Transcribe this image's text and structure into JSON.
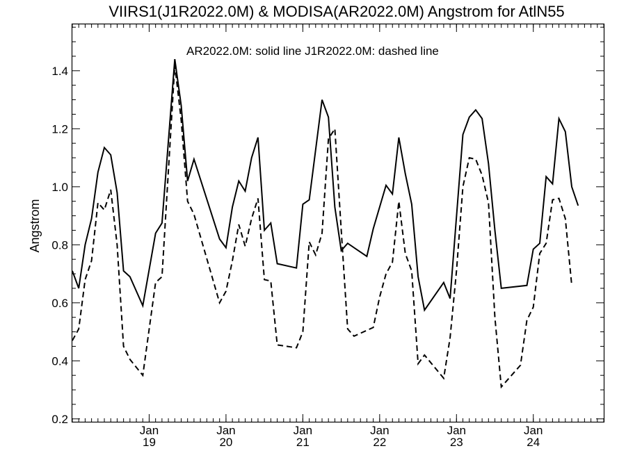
{
  "chart_data": {
    "type": "line",
    "title": "VIIRS1(J1R2022.0M) & MODISA(AR2022.0M)  Angstrom for AtlN55",
    "annotation": "AR2022.0M: solid line   J1R2022.0M: dashed line",
    "ylabel": "Angstrom",
    "xlabel": "",
    "ylim": [
      0.19,
      1.56
    ],
    "xlim": [
      "2018-01-01",
      "2024-12-01"
    ],
    "y_ticks": [
      "0.2",
      "0.4",
      "0.6",
      "0.8",
      "1.0",
      "1.2",
      "1.4"
    ],
    "x_ticks": [
      {
        "month": "Jan",
        "year": "19",
        "date": "2019-01-01"
      },
      {
        "month": "Jan",
        "year": "20",
        "date": "2020-01-01"
      },
      {
        "month": "Jan",
        "year": "21",
        "date": "2021-01-01"
      },
      {
        "month": "Jan",
        "year": "22",
        "date": "2022-01-01"
      },
      {
        "month": "Jan",
        "year": "23",
        "date": "2023-01-01"
      },
      {
        "month": "Jan",
        "year": "24",
        "date": "2024-01-01"
      }
    ],
    "series": [
      {
        "name": "AR2022.0M",
        "style": "solid",
        "color": "#000000",
        "points": [
          [
            "2018-01-01",
            0.71
          ],
          [
            "2018-02-01",
            0.65
          ],
          [
            "2018-03-01",
            0.8
          ],
          [
            "2018-04-01",
            0.89
          ],
          [
            "2018-05-01",
            1.05
          ],
          [
            "2018-06-01",
            1.135
          ],
          [
            "2018-07-01",
            1.11
          ],
          [
            "2018-08-01",
            0.98
          ],
          [
            "2018-09-01",
            0.71
          ],
          [
            "2018-10-01",
            0.69
          ],
          [
            "2018-12-01",
            0.59
          ],
          [
            "2019-02-01",
            0.84
          ],
          [
            "2019-03-01",
            0.875
          ],
          [
            "2019-05-01",
            1.44
          ],
          [
            "2019-06-01",
            1.28
          ],
          [
            "2019-07-01",
            1.02
          ],
          [
            "2019-08-01",
            1.095
          ],
          [
            "2019-12-01",
            0.82
          ],
          [
            "2020-01-01",
            0.79
          ],
          [
            "2020-02-01",
            0.93
          ],
          [
            "2020-03-01",
            1.02
          ],
          [
            "2020-04-01",
            0.985
          ],
          [
            "2020-05-01",
            1.1
          ],
          [
            "2020-06-01",
            1.17
          ],
          [
            "2020-07-01",
            0.85
          ],
          [
            "2020-08-01",
            0.875
          ],
          [
            "2020-09-01",
            0.735
          ],
          [
            "2020-12-01",
            0.72
          ],
          [
            "2021-01-01",
            0.94
          ],
          [
            "2021-02-01",
            0.955
          ],
          [
            "2021-04-01",
            1.3
          ],
          [
            "2021-05-01",
            1.24
          ],
          [
            "2021-06-01",
            0.93
          ],
          [
            "2021-07-01",
            0.78
          ],
          [
            "2021-08-01",
            0.805
          ],
          [
            "2021-11-01",
            0.76
          ],
          [
            "2021-12-01",
            0.855
          ],
          [
            "2022-02-01",
            1.005
          ],
          [
            "2022-03-01",
            0.975
          ],
          [
            "2022-04-01",
            1.17
          ],
          [
            "2022-05-01",
            1.045
          ],
          [
            "2022-06-01",
            0.94
          ],
          [
            "2022-07-01",
            0.69
          ],
          [
            "2022-08-01",
            0.575
          ],
          [
            "2022-11-01",
            0.67
          ],
          [
            "2022-12-01",
            0.615
          ],
          [
            "2023-02-01",
            1.18
          ],
          [
            "2023-03-01",
            1.24
          ],
          [
            "2023-04-01",
            1.265
          ],
          [
            "2023-05-01",
            1.235
          ],
          [
            "2023-06-01",
            1.08
          ],
          [
            "2023-07-01",
            0.85
          ],
          [
            "2023-08-01",
            0.65
          ],
          [
            "2023-12-01",
            0.66
          ],
          [
            "2024-01-01",
            0.785
          ],
          [
            "2024-02-01",
            0.805
          ],
          [
            "2024-03-01",
            1.035
          ],
          [
            "2024-04-01",
            1.01
          ],
          [
            "2024-05-01",
            1.235
          ],
          [
            "2024-06-01",
            1.19
          ],
          [
            "2024-07-01",
            1.0
          ],
          [
            "2024-08-01",
            0.935
          ]
        ]
      },
      {
        "name": "J1R2022.0M",
        "style": "dashed",
        "color": "#000000",
        "points": [
          [
            "2018-01-01",
            0.47
          ],
          [
            "2018-02-01",
            0.51
          ],
          [
            "2018-03-01",
            0.68
          ],
          [
            "2018-04-01",
            0.745
          ],
          [
            "2018-05-01",
            0.945
          ],
          [
            "2018-06-01",
            0.92
          ],
          [
            "2018-07-01",
            0.99
          ],
          [
            "2018-08-01",
            0.8
          ],
          [
            "2018-09-01",
            0.45
          ],
          [
            "2018-10-01",
            0.405
          ],
          [
            "2018-12-01",
            0.35
          ],
          [
            "2019-02-01",
            0.67
          ],
          [
            "2019-03-01",
            0.69
          ],
          [
            "2019-05-01",
            1.42
          ],
          [
            "2019-06-01",
            1.23
          ],
          [
            "2019-07-01",
            0.95
          ],
          [
            "2019-08-01",
            0.905
          ],
          [
            "2019-12-01",
            0.6
          ],
          [
            "2020-01-01",
            0.64
          ],
          [
            "2020-02-01",
            0.745
          ],
          [
            "2020-03-01",
            0.87
          ],
          [
            "2020-04-01",
            0.795
          ],
          [
            "2020-05-01",
            0.89
          ],
          [
            "2020-06-01",
            0.96
          ],
          [
            "2020-07-01",
            0.68
          ],
          [
            "2020-08-01",
            0.675
          ],
          [
            "2020-09-01",
            0.455
          ],
          [
            "2020-12-01",
            0.445
          ],
          [
            "2021-01-01",
            0.5
          ],
          [
            "2021-02-01",
            0.81
          ],
          [
            "2021-03-01",
            0.765
          ],
          [
            "2021-04-01",
            0.84
          ],
          [
            "2021-05-01",
            1.165
          ],
          [
            "2021-06-01",
            1.2
          ],
          [
            "2021-07-01",
            0.85
          ],
          [
            "2021-08-01",
            0.51
          ],
          [
            "2021-09-01",
            0.485
          ],
          [
            "2021-12-01",
            0.515
          ],
          [
            "2022-01-01",
            0.62
          ],
          [
            "2022-02-01",
            0.7
          ],
          [
            "2022-03-01",
            0.74
          ],
          [
            "2022-04-01",
            0.95
          ],
          [
            "2022-05-01",
            0.77
          ],
          [
            "2022-06-01",
            0.71
          ],
          [
            "2022-07-01",
            0.39
          ],
          [
            "2022-08-01",
            0.42
          ],
          [
            "2022-11-01",
            0.34
          ],
          [
            "2022-12-01",
            0.48
          ],
          [
            "2023-01-01",
            0.71
          ],
          [
            "2023-02-01",
            1.0
          ],
          [
            "2023-03-01",
            1.1
          ],
          [
            "2023-04-01",
            1.095
          ],
          [
            "2023-05-01",
            1.04
          ],
          [
            "2023-06-01",
            0.945
          ],
          [
            "2023-07-01",
            0.55
          ],
          [
            "2023-08-01",
            0.31
          ],
          [
            "2023-11-01",
            0.385
          ],
          [
            "2023-12-01",
            0.54
          ],
          [
            "2024-01-01",
            0.585
          ],
          [
            "2024-02-01",
            0.77
          ],
          [
            "2024-03-01",
            0.805
          ],
          [
            "2024-04-01",
            0.955
          ],
          [
            "2024-05-01",
            0.96
          ],
          [
            "2024-06-01",
            0.89
          ],
          [
            "2024-07-01",
            0.66
          ]
        ]
      }
    ]
  }
}
